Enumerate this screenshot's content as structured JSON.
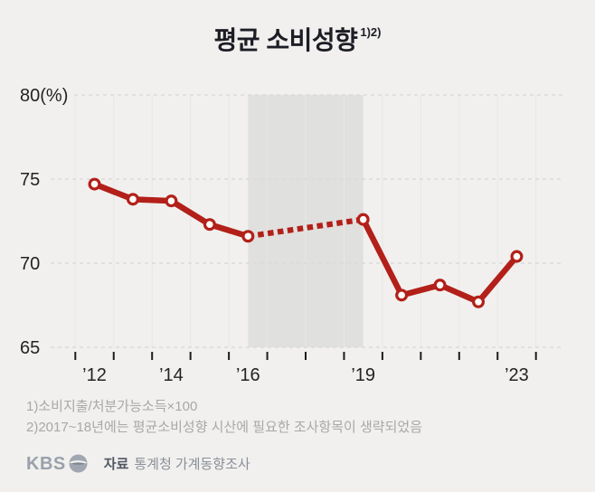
{
  "title": {
    "text": "평균 소비성향",
    "superscript": "1)2)"
  },
  "chart_data": {
    "type": "line",
    "title": "평균 소비성향",
    "unit": "%",
    "categories": [
      2012,
      2013,
      2014,
      2015,
      2016,
      2017,
      2018,
      2019,
      2020,
      2021,
      2022,
      2023
    ],
    "series": [
      {
        "name": "평균 소비성향(%)",
        "values": [
          74.7,
          73.8,
          73.7,
          72.3,
          71.6,
          null,
          null,
          72.6,
          68.1,
          68.7,
          67.7,
          70.4
        ]
      }
    ],
    "missing_years": [
      2017,
      2018
    ],
    "missing_bridge_style": "dotted",
    "highlight_band": {
      "from_year": 2016,
      "to_year": 2019
    },
    "ylim": [
      65,
      80
    ],
    "yticks": [
      65,
      70,
      75,
      80
    ],
    "ytick_top_label": "80(%)",
    "xtick_labels": [
      {
        "year": 2012,
        "label": "’12"
      },
      {
        "year": 2014,
        "label": "’14"
      },
      {
        "year": 2016,
        "label": "’16"
      },
      {
        "year": 2019,
        "label": "’19"
      },
      {
        "year": 2023,
        "label": "’23"
      }
    ],
    "grid": true,
    "legend": "none",
    "colors": {
      "line": "#b22019",
      "marker_fill": "#fdfcfb",
      "band": "rgba(0,0,0,0.065)",
      "grid_dashed": "#dbdad8",
      "grid_vertical": "#e8e7e5",
      "tick": "#1c1c1c",
      "axis_text": "#232323"
    }
  },
  "footnotes": [
    "1)소비지출/처분가능소득×100",
    "2)2017~18년에는 평균소비성향 시산에 필요한 조사항목이 생략되었음"
  ],
  "footer": {
    "logo": "KBS",
    "source_label": "자료",
    "source": "통계청 가계동향조사"
  }
}
